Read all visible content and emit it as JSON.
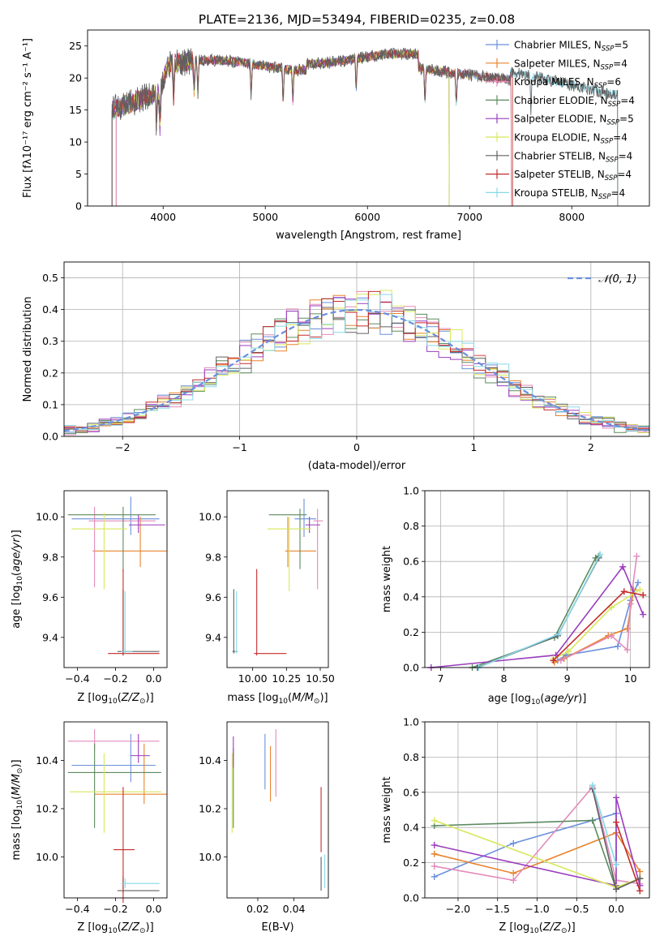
{
  "title": "PLATE=2136, MJD=53494, FIBERID=0235, z=0.08",
  "colors": {
    "Chabrier MILES": "#6a8fdc",
    "Salpeter MILES": "#e8832d",
    "Kroupa MILES": "#e38bbb",
    "Chabrier ELODIE": "#5b8a5e",
    "Salpeter ELODIE": "#9a3dbd",
    "Kroupa ELODIE": "#d8e85c",
    "Chabrier STELIB": "#606060",
    "Salpeter STELIB": "#c42b2b",
    "Kroupa STELIB": "#88d8e8"
  },
  "legend1": [
    {
      "label": "Chabrier MILES, N",
      "sub": "SSP",
      "tail": "=5",
      "key": "Chabrier MILES"
    },
    {
      "label": "Salpeter MILES, N",
      "sub": "SSP",
      "tail": "=4",
      "key": "Salpeter MILES"
    },
    {
      "label": "Kroupa MILES, N",
      "sub": "SSP",
      "tail": "=6",
      "key": "Kroupa MILES"
    },
    {
      "label": "Chabrier ELODIE, N",
      "sub": "SSP",
      "tail": "=4",
      "key": "Chabrier ELODIE"
    },
    {
      "label": "Salpeter ELODIE, N",
      "sub": "SSP",
      "tail": "=5",
      "key": "Salpeter ELODIE"
    },
    {
      "label": "Kroupa ELODIE, N",
      "sub": "SSP",
      "tail": "=4",
      "key": "Kroupa ELODIE"
    },
    {
      "label": "Chabrier STELIB, N",
      "sub": "SSP",
      "tail": "=4",
      "key": "Chabrier STELIB"
    },
    {
      "label": "Salpeter STELIB, N",
      "sub": "SSP",
      "tail": "=4",
      "key": "Salpeter STELIB"
    },
    {
      "label": "Kroupa STELIB, N",
      "sub": "SSP",
      "tail": "=4",
      "key": "Kroupa STELIB"
    }
  ],
  "chart_data": [
    {
      "type": "line",
      "id": "spectrum",
      "xlabel": "wavelength [Angstrom, rest frame]",
      "ylabel": "Flux [fλ10⁻¹⁷ erg cm⁻² s⁻¹ A⁻¹]",
      "xlim": [
        3260,
        8760
      ],
      "ylim": [
        0,
        27.5
      ],
      "xticks": [
        4000,
        5000,
        6000,
        7000,
        8000
      ],
      "yticks": [
        0,
        5,
        10,
        15,
        20,
        25
      ],
      "data_range": [
        3500,
        8450
      ],
      "absorption_lines_x": [
        3934,
        3969,
        4102,
        4304,
        4340,
        4861,
        5175,
        5270,
        5890,
        6563,
        6870,
        7600
      ],
      "note_series": "9 model fits overplotted on observed spectrum"
    },
    {
      "type": "line",
      "id": "residuals",
      "xlabel": "(data-model)/error",
      "ylabel": "Normed distribution",
      "xlim": [
        -2.5,
        2.5
      ],
      "ylim": [
        0,
        0.55
      ],
      "xticks": [
        -2,
        -1,
        0,
        1,
        2
      ],
      "yticks": [
        0.0,
        0.1,
        0.2,
        0.3,
        0.4,
        0.5
      ],
      "legend": "𝒩(0, 1)",
      "gaussian": {
        "mu": 0,
        "sigma": 1
      },
      "hist_bin_width": 0.1,
      "note_series": "9 step histograms scattering around N(0,1)"
    },
    {
      "type": "scatter",
      "id": "age-vs-z",
      "xlabel": "Z [log10(Z/Z⊙)]",
      "ylabel": "age [log10(age/yr)]",
      "xlim": [
        -0.47,
        0.07
      ],
      "ylim": [
        9.25,
        10.13
      ],
      "xticks": [
        -0.4,
        -0.2,
        0.0
      ],
      "yticks": [
        9.4,
        9.6,
        9.8,
        10.0
      ],
      "points": [
        {
          "key": "Chabrier MILES",
          "x": -0.12,
          "xerr": [
            0.31,
            0.15
          ],
          "y": 9.99,
          "yerr": [
            0.08,
            0.11
          ]
        },
        {
          "key": "Salpeter MILES",
          "x": -0.07,
          "xerr": [
            0.25,
            0.14
          ],
          "y": 9.83,
          "yerr": [
            0.08,
            0.17
          ]
        },
        {
          "key": "Kroupa MILES",
          "x": -0.31,
          "xerr": [
            0.03,
            0.32
          ],
          "y": 9.98,
          "yerr": [
            0.33,
            0.07
          ]
        },
        {
          "key": "Chabrier ELODIE",
          "x": -0.16,
          "xerr": [
            0.29,
            0.17
          ],
          "y": 10.01,
          "yerr": [
            0.28,
            0.04
          ]
        },
        {
          "key": "Salpeter ELODIE",
          "x": -0.08,
          "xerr": [
            0.05,
            0.14
          ],
          "y": 9.96,
          "yerr": [
            0.04,
            0.05
          ]
        },
        {
          "key": "Kroupa ELODIE",
          "x": -0.26,
          "xerr": [
            0.17,
            0.12
          ],
          "y": 9.94,
          "yerr": [
            0.3,
            0.08
          ]
        },
        {
          "key": "Chabrier STELIB",
          "x": -0.16,
          "xerr": [
            0.03,
            0.19
          ],
          "y": 9.33,
          "yerr": [
            0.02,
            0.31
          ]
        },
        {
          "key": "Salpeter STELIB",
          "x": -0.16,
          "xerr": [
            0.08,
            0.19
          ],
          "y": 9.32,
          "yerr": [
            0.01,
            0.42
          ]
        },
        {
          "key": "Kroupa STELIB",
          "x": -0.15,
          "xerr": [
            0.02,
            0.04
          ],
          "y": 9.33,
          "yerr": [
            0.01,
            0.3
          ]
        }
      ]
    },
    {
      "type": "scatter",
      "id": "age-vs-mass",
      "xlabel": "mass [log10(M/M⊙)]",
      "ylabel": "",
      "xlim": [
        9.81,
        10.56
      ],
      "ylim": [
        9.25,
        10.13
      ],
      "xticks": [
        10.0,
        10.25,
        10.5
      ],
      "yticks": [
        9.4,
        9.6,
        9.8,
        10.0
      ],
      "points": [
        {
          "key": "Chabrier MILES",
          "x": 10.38,
          "xerr": [
            0.07,
            0.09
          ],
          "y": 9.99,
          "yerr": [
            0.09,
            0.1
          ]
        },
        {
          "key": "Salpeter MILES",
          "x": 10.26,
          "xerr": [
            0.02,
            0.21
          ],
          "y": 9.83,
          "yerr": [
            0.08,
            0.17
          ]
        },
        {
          "key": "Kroupa MILES",
          "x": 10.48,
          "xerr": [
            0.03,
            0.04
          ],
          "y": 9.98,
          "yerr": [
            0.34,
            0.06
          ]
        },
        {
          "key": "Chabrier ELODIE",
          "x": 10.35,
          "xerr": [
            0.23,
            0.05
          ],
          "y": 10.01,
          "yerr": [
            0.27,
            0.03
          ]
        },
        {
          "key": "Salpeter ELODIE",
          "x": 10.42,
          "xerr": [
            0.03,
            0.08
          ],
          "y": 9.96,
          "yerr": [
            0.04,
            0.04
          ]
        },
        {
          "key": "Kroupa ELODIE",
          "x": 10.27,
          "xerr": [
            0.16,
            0.16
          ],
          "y": 9.94,
          "yerr": [
            0.31,
            0.06
          ]
        },
        {
          "key": "Chabrier STELIB",
          "x": 9.86,
          "xerr": [
            0.01,
            0.03
          ],
          "y": 9.33,
          "yerr": [
            0.01,
            0.31
          ]
        },
        {
          "key": "Salpeter STELIB",
          "x": 10.03,
          "xerr": [
            0.02,
            0.22
          ],
          "y": 9.32,
          "yerr": [
            0.01,
            0.42
          ]
        },
        {
          "key": "Kroupa STELIB",
          "x": 9.88,
          "xerr": [
            0.01,
            0.01
          ],
          "y": 9.33,
          "yerr": [
            0.01,
            0.3
          ]
        }
      ]
    },
    {
      "type": "line",
      "id": "massweight-vs-age",
      "xlabel": "age [log10(age/yr)]",
      "ylabel": "mass weight",
      "xlim": [
        6.75,
        10.3
      ],
      "ylim": [
        0,
        1
      ],
      "xticks": [
        7,
        8,
        9,
        10
      ],
      "yticks": [
        0.0,
        0.2,
        0.4,
        0.6,
        0.8,
        1.0
      ],
      "grid": true,
      "series": [
        {
          "key": "Chabrier MILES",
          "x": [
            8.85,
            8.98,
            9.8,
            10.0,
            10.12
          ],
          "y": [
            0.04,
            0.07,
            0.12,
            0.38,
            0.48
          ]
        },
        {
          "key": "Salpeter MILES",
          "x": [
            8.8,
            8.95,
            9.65,
            9.95,
            10.05
          ],
          "y": [
            0.03,
            0.05,
            0.18,
            0.22,
            0.44
          ]
        },
        {
          "key": "Kroupa MILES",
          "x": [
            8.9,
            9.7,
            9.95,
            10.0,
            10.1
          ],
          "y": [
            0.04,
            0.18,
            0.1,
            0.36,
            0.63
          ]
        },
        {
          "key": "Chabrier ELODIE",
          "x": [
            7.5,
            8.8,
            9.45,
            9.5
          ],
          "y": [
            0.0,
            0.17,
            0.62,
            0.63
          ]
        },
        {
          "key": "Salpeter ELODIE",
          "x": [
            6.85,
            8.82,
            9.88,
            10.2
          ],
          "y": [
            0.0,
            0.07,
            0.57,
            0.3
          ]
        },
        {
          "key": "Kroupa ELODIE",
          "x": [
            8.78,
            9.02,
            9.7,
            10.15
          ],
          "y": [
            0.05,
            0.09,
            0.34,
            0.44
          ]
        },
        {
          "key": "Chabrier STELIB",
          "x": [
            7.58,
            8.85,
            9.5
          ],
          "y": [
            0.0,
            0.18,
            0.62
          ]
        },
        {
          "key": "Salpeter STELIB",
          "x": [
            8.78,
            9.9,
            10.2
          ],
          "y": [
            0.04,
            0.43,
            0.41
          ]
        },
        {
          "key": "Kroupa STELIB",
          "x": [
            7.6,
            8.87,
            9.52
          ],
          "y": [
            0.0,
            0.19,
            0.64
          ]
        }
      ]
    },
    {
      "type": "scatter",
      "id": "mass-vs-z",
      "xlabel": "Z [log10(Z/Z⊙)]",
      "ylabel": "mass [log10(M/M⊙)]",
      "xlim": [
        -0.47,
        0.07
      ],
      "ylim": [
        9.83,
        10.56
      ],
      "xticks": [
        -0.4,
        -0.2,
        0.0
      ],
      "yticks": [
        10.0,
        10.2,
        10.4
      ],
      "points": [
        {
          "key": "Chabrier MILES",
          "x": -0.12,
          "xerr": [
            0.31,
            0.13
          ],
          "y": 10.38,
          "yerr": [
            0.07,
            0.13
          ]
        },
        {
          "key": "Salpeter MILES",
          "x": -0.05,
          "xerr": [
            0.26,
            0.12
          ],
          "y": 10.26,
          "yerr": [
            0.04,
            0.21
          ]
        },
        {
          "key": "Kroupa MILES",
          "x": -0.31,
          "xerr": [
            0.14,
            0.34
          ],
          "y": 10.48,
          "yerr": [
            0.04,
            0.05
          ]
        },
        {
          "key": "Chabrier ELODIE",
          "x": -0.31,
          "xerr": [
            0.14,
            0.35
          ],
          "y": 10.35,
          "yerr": [
            0.23,
            0.12
          ]
        },
        {
          "key": "Salpeter ELODIE",
          "x": -0.08,
          "xerr": [
            0.04,
            0.06
          ],
          "y": 10.42,
          "yerr": [
            0.03,
            0.09
          ]
        },
        {
          "key": "Kroupa ELODIE",
          "x": -0.26,
          "xerr": [
            0.18,
            0.3
          ],
          "y": 10.27,
          "yerr": [
            0.17,
            0.16
          ]
        },
        {
          "key": "Chabrier STELIB",
          "x": -0.16,
          "xerr": [
            0.03,
            0.19
          ],
          "y": 9.86,
          "yerr": [
            0.01,
            0.06
          ]
        },
        {
          "key": "Salpeter STELIB",
          "x": -0.16,
          "xerr": [
            0.05,
            0.06
          ],
          "y": 10.03,
          "yerr": [
            0.22,
            0.26
          ]
        },
        {
          "key": "Kroupa STELIB",
          "x": -0.15,
          "xerr": [
            0.02,
            0.18
          ],
          "y": 9.89,
          "yerr": [
            0.02,
            0.02
          ]
        }
      ]
    },
    {
      "type": "scatter",
      "id": "mass-vs-ebv",
      "xlabel": "E(B-V)",
      "ylabel": "",
      "xlim": [
        0.003,
        0.059
      ],
      "ylim": [
        9.83,
        10.56
      ],
      "xticks": [
        0.02,
        0.04
      ],
      "yticks": [
        10.0,
        10.2,
        10.4
      ],
      "points": [
        {
          "key": "Chabrier MILES",
          "x": 0.024,
          "y": 10.38,
          "yerr": [
            0.1,
            0.13
          ]
        },
        {
          "key": "Salpeter MILES",
          "x": 0.027,
          "y": 10.26,
          "yerr": [
            0.03,
            0.2
          ]
        },
        {
          "key": "Kroupa MILES",
          "x": 0.03,
          "y": 10.48,
          "yerr": [
            0.23,
            0.05
          ]
        },
        {
          "key": "Chabrier ELODIE",
          "x": 0.0065,
          "y": 10.35,
          "yerr": [
            0.23,
            0.1
          ]
        },
        {
          "key": "Salpeter ELODIE",
          "x": 0.0065,
          "y": 10.42,
          "yerr": [
            0.05,
            0.08
          ]
        },
        {
          "key": "Kroupa ELODIE",
          "x": 0.0058,
          "y": 10.27,
          "yerr": [
            0.17,
            0.16
          ]
        },
        {
          "key": "Chabrier STELIB",
          "x": 0.055,
          "y": 9.92,
          "yerr": [
            0.06,
            0.08
          ]
        },
        {
          "key": "Salpeter STELIB",
          "x": 0.055,
          "y": 10.15,
          "yerr": [
            0.13,
            0.14
          ]
        },
        {
          "key": "Kroupa STELIB",
          "x": 0.057,
          "y": 9.94,
          "yerr": [
            0.07,
            0.07
          ]
        }
      ]
    },
    {
      "type": "line",
      "id": "massweight-vs-z",
      "xlabel": "Z [log10(Z/Z⊙)]",
      "ylabel": "mass weight",
      "xlim": [
        -2.42,
        0.42
      ],
      "ylim": [
        0,
        1
      ],
      "xticks": [
        -2.0,
        -1.5,
        -1.0,
        -0.5,
        0.0
      ],
      "yticks": [
        0.0,
        0.2,
        0.4,
        0.6,
        0.8,
        1.0
      ],
      "grid": true,
      "series": [
        {
          "key": "Chabrier MILES",
          "x": [
            -2.3,
            -1.3,
            -0.3,
            0.0,
            0.0
          ],
          "y": [
            0.12,
            0.31,
            0.44,
            0.48,
            0.19
          ]
        },
        {
          "key": "Salpeter MILES",
          "x": [
            -2.3,
            -1.3,
            0.0,
            0.3,
            0.3
          ],
          "y": [
            0.25,
            0.14,
            0.37,
            0.15,
            0.04
          ]
        },
        {
          "key": "Kroupa MILES",
          "x": [
            -2.3,
            -1.3,
            -0.3,
            0.0,
            0.3
          ],
          "y": [
            0.18,
            0.1,
            0.63,
            0.1,
            0.08
          ]
        },
        {
          "key": "Chabrier ELODIE",
          "x": [
            -2.3,
            -0.3,
            0.0,
            0.3
          ],
          "y": [
            0.41,
            0.44,
            0.05,
            0.11
          ]
        },
        {
          "key": "Salpeter ELODIE",
          "x": [
            -2.3,
            0.0,
            0.0,
            0.3
          ],
          "y": [
            0.3,
            0.07,
            0.57,
            0.07
          ]
        },
        {
          "key": "Kroupa ELODIE",
          "x": [
            -2.3,
            0.0,
            0.3
          ],
          "y": [
            0.44,
            0.06,
            0.11
          ]
        },
        {
          "key": "Chabrier STELIB",
          "x": [
            -0.3,
            0.0,
            0.3
          ],
          "y": [
            0.62,
            0.05,
            0.11
          ]
        },
        {
          "key": "Salpeter STELIB",
          "x": [
            0.0,
            0.3
          ],
          "y": [
            0.43,
            0.04
          ]
        },
        {
          "key": "Kroupa STELIB",
          "x": [
            -0.3,
            0.0
          ],
          "y": [
            0.64,
            0.19
          ]
        }
      ]
    }
  ]
}
